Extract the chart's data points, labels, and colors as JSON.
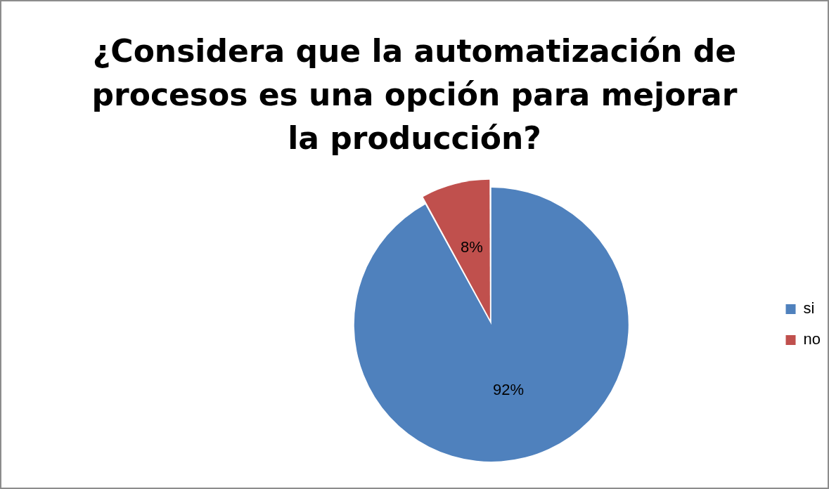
{
  "chart_data": {
    "type": "pie",
    "title": "¿Considera que la automatización de procesos es una opción para mejorar la producción?",
    "categories": [
      "si",
      "no"
    ],
    "values": [
      92,
      8
    ],
    "colors": [
      "#4f81bd",
      "#c0504d"
    ],
    "value_labels": [
      "92%",
      "8%"
    ],
    "legend": "right"
  }
}
